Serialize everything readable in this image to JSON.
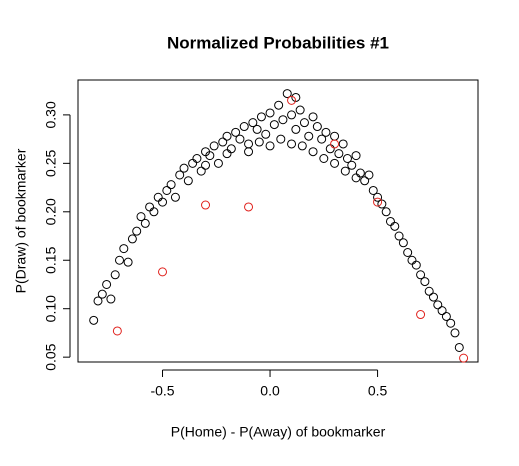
{
  "chart_data": {
    "type": "scatter",
    "title": "Normalized Probabilities #1",
    "x_label": "P(Home) - P(Away) of bookmarker",
    "y_label": "P(Draw) of bookmarker",
    "xlim": [
      -0.893,
      0.967
    ],
    "ylim": [
      0.045,
      0.336
    ],
    "xticks": [
      -0.5,
      {
        "value": 0,
        "label": "0.0"
      },
      0.5
    ],
    "yticks": [
      0.05,
      {
        "value": 0.1,
        "label": "0.10"
      },
      0.15,
      {
        "value": 0.2,
        "label": "0.20"
      },
      0.25,
      {
        "value": 0.3,
        "label": "0.30"
      }
    ],
    "grid": false,
    "series": [
      {
        "color": "#000000",
        "x": [
          -0.82,
          -0.8,
          -0.78,
          -0.76,
          -0.74,
          -0.72,
          -0.7,
          -0.68,
          -0.66,
          -0.64,
          -0.62,
          -0.6,
          -0.58,
          -0.56,
          -0.54,
          -0.52,
          -0.5,
          -0.48,
          -0.46,
          -0.44,
          -0.42,
          -0.4,
          -0.38,
          -0.36,
          -0.34,
          -0.32,
          -0.3,
          -0.28,
          -0.26,
          -0.24,
          -0.22,
          -0.2,
          -0.18,
          -0.16,
          -0.14,
          -0.12,
          -0.1,
          -0.08,
          -0.06,
          -0.04,
          -0.02,
          0.0,
          0.02,
          0.04,
          0.06,
          0.08,
          0.1,
          0.12,
          0.14,
          0.16,
          0.18,
          0.2,
          0.22,
          0.24,
          0.26,
          0.28,
          0.3,
          0.32,
          0.34,
          0.36,
          0.38,
          0.4,
          0.42,
          0.44,
          0.46,
          0.48,
          0.5,
          0.52,
          0.54,
          0.56,
          0.58,
          0.6,
          0.62,
          0.64,
          0.66,
          0.68,
          0.7,
          0.72,
          0.74,
          0.76,
          0.78,
          0.8,
          0.82,
          0.84,
          0.86,
          0.88,
          0.05,
          0.1,
          0.15,
          -0.05,
          0.0,
          0.2,
          0.25,
          -0.1,
          0.12,
          -0.2,
          0.3,
          0.35,
          -0.3,
          0.4
        ],
        "values": [
          0.088,
          0.108,
          0.115,
          0.125,
          0.11,
          0.135,
          0.15,
          0.162,
          0.148,
          0.172,
          0.18,
          0.195,
          0.188,
          0.205,
          0.2,
          0.215,
          0.21,
          0.222,
          0.228,
          0.215,
          0.238,
          0.245,
          0.232,
          0.25,
          0.255,
          0.242,
          0.262,
          0.258,
          0.268,
          0.25,
          0.272,
          0.278,
          0.265,
          0.282,
          0.275,
          0.288,
          0.27,
          0.292,
          0.285,
          0.298,
          0.28,
          0.302,
          0.29,
          0.31,
          0.295,
          0.322,
          0.3,
          0.285,
          0.305,
          0.292,
          0.278,
          0.298,
          0.288,
          0.275,
          0.282,
          0.265,
          0.278,
          0.26,
          0.27,
          0.255,
          0.248,
          0.258,
          0.24,
          0.232,
          0.238,
          0.222,
          0.215,
          0.208,
          0.2,
          0.19,
          0.185,
          0.175,
          0.168,
          0.158,
          0.15,
          0.145,
          0.135,
          0.128,
          0.118,
          0.112,
          0.104,
          0.098,
          0.092,
          0.085,
          0.075,
          0.06,
          0.275,
          0.27,
          0.268,
          0.272,
          0.268,
          0.262,
          0.255,
          0.262,
          0.318,
          0.26,
          0.25,
          0.242,
          0.248,
          0.235
        ]
      },
      {
        "color": "#e0201b",
        "x": [
          -0.71,
          -0.5,
          -0.3,
          -0.1,
          0.1,
          0.3,
          0.5,
          0.7,
          0.9
        ],
        "values": [
          0.077,
          0.138,
          0.207,
          0.205,
          0.315,
          0.27,
          0.21,
          0.094,
          0.049
        ]
      }
    ]
  }
}
